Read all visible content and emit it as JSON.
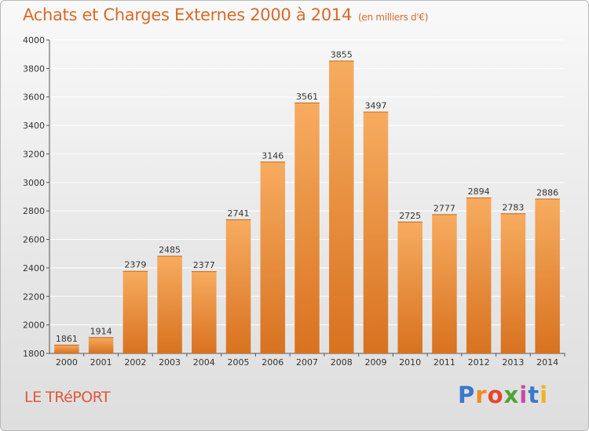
{
  "header": {
    "title": "Achats et Charges Externes 2000 à 2014",
    "unit": "(en milliers d'€)"
  },
  "footer": {
    "city": "LE TRéPORT",
    "brand_letters": [
      "P",
      "r",
      "o",
      "x",
      "i",
      "t",
      "i"
    ],
    "brand_colors": [
      "#3a78c9",
      "#f08a24",
      "#e8452c",
      "#4fa532",
      "#c44ba6",
      "#3a78c9",
      "#f0b324"
    ]
  },
  "colors": {
    "bar_top": "#f7ac60",
    "bar_bottom": "#d8721f",
    "grid": "#ffffff",
    "axis": "#555555"
  },
  "chart_data": {
    "type": "bar",
    "title": "Achats et Charges Externes 2000 à 2014",
    "subtitle": "(en milliers d'€)",
    "xlabel": "",
    "ylabel": "",
    "categories": [
      "2000",
      "2001",
      "2002",
      "2003",
      "2004",
      "2005",
      "2006",
      "2007",
      "2008",
      "2009",
      "2010",
      "2011",
      "2012",
      "2013",
      "2014"
    ],
    "values": [
      1861,
      1914,
      2379,
      2485,
      2377,
      2741,
      3146,
      3561,
      3855,
      3497,
      2725,
      2777,
      2894,
      2783,
      2886
    ],
    "ylim": [
      1800,
      4000
    ],
    "yticks": [
      1800,
      2000,
      2200,
      2400,
      2600,
      2800,
      3000,
      3200,
      3400,
      3600,
      3800,
      4000
    ],
    "grid": true,
    "data_labels": true
  }
}
